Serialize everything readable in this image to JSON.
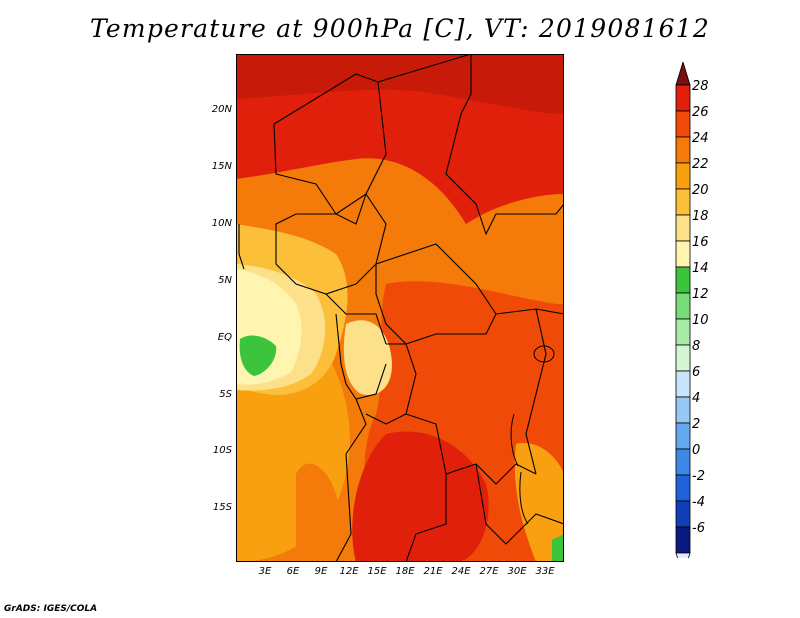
{
  "title": "Temperature at 900hPa [C], VT: 2019081612",
  "footer": "GrADS: IGES/COLA",
  "map": {
    "lat_labels": [
      "20N",
      "15N",
      "10N",
      "5N",
      "EQ",
      "5S",
      "10S",
      "15S"
    ],
    "lon_labels": [
      "3E",
      "6E",
      "9E",
      "12E",
      "15E",
      "18E",
      "21E",
      "24E",
      "27E",
      "30E",
      "33E"
    ]
  },
  "colorbar": {
    "levels": [
      "28",
      "26",
      "24",
      "22",
      "20",
      "18",
      "16",
      "14",
      "12",
      "10",
      "8",
      "6",
      "4",
      "2",
      "0",
      "-2",
      "-4",
      "-6"
    ],
    "colors": [
      "#7a0d0d",
      "#e0200a",
      "#f04a08",
      "#f47a0a",
      "#f8a010",
      "#fbbf3a",
      "#fde08a",
      "#fff4b0",
      "#3cc43c",
      "#78dd78",
      "#a8eba8",
      "#d4f6d4",
      "#c8e4fa",
      "#96c8f5",
      "#64a8ef",
      "#3c88e6",
      "#1e64d8",
      "#1040b8",
      "#0a1a80",
      "#e8e8ff"
    ]
  }
}
